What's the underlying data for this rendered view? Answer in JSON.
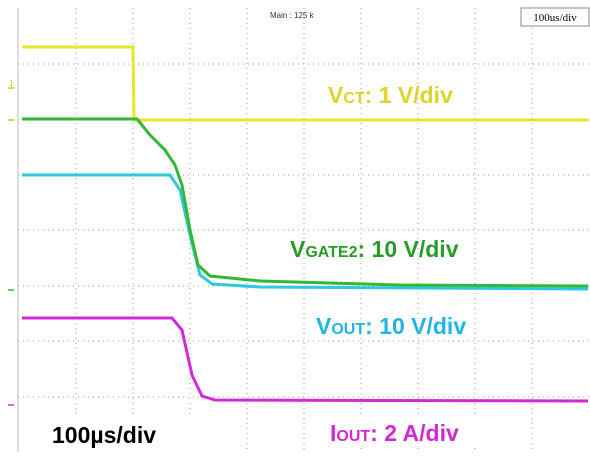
{
  "header": {
    "main": "Main : 125 k",
    "timebase": "100us/div"
  },
  "labels": [
    {
      "symbol": "V",
      "sub": "CT",
      "scale": ": 1 V/div"
    },
    {
      "symbol": "V",
      "sub": "GATE2",
      "scale": ": 10 V/div"
    },
    {
      "symbol": "V",
      "sub": "OUT",
      "scale": ": 10 V/div"
    },
    {
      "symbol": "I",
      "sub": "OUT",
      "scale": ": 2 A/div"
    }
  ],
  "footer": {
    "timebase": "100µs/div"
  }
}
